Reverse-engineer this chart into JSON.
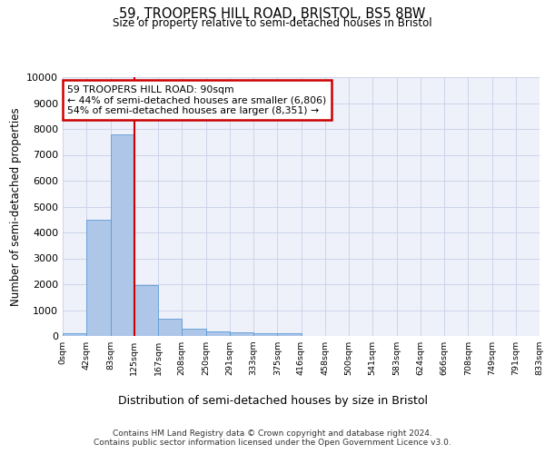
{
  "title": "59, TROOPERS HILL ROAD, BRISTOL, BS5 8BW",
  "subtitle": "Size of property relative to semi-detached houses in Bristol",
  "xlabel": "Distribution of semi-detached houses by size in Bristol",
  "ylabel": "Number of semi-detached properties",
  "bar_values": [
    120,
    4500,
    7800,
    1950,
    650,
    280,
    170,
    150,
    110,
    100,
    0,
    0,
    0,
    0,
    0,
    0,
    0,
    0,
    0,
    0
  ],
  "bar_labels": [
    "0sqm",
    "42sqm",
    "83sqm",
    "125sqm",
    "167sqm",
    "208sqm",
    "250sqm",
    "291sqm",
    "333sqm",
    "375sqm",
    "416sqm",
    "458sqm",
    "500sqm",
    "541sqm",
    "583sqm",
    "624sqm",
    "666sqm",
    "708sqm",
    "749sqm",
    "791sqm",
    "833sqm"
  ],
  "bar_color": "#aec6e8",
  "bar_edge_color": "#5b9bd5",
  "property_line_x": 2.5,
  "annotation_text": "59 TROOPERS HILL ROAD: 90sqm\n← 44% of semi-detached houses are smaller (6,806)\n54% of semi-detached houses are larger (8,351) →",
  "annotation_box_color": "#ffffff",
  "annotation_box_edge": "#cc0000",
  "ylim": [
    0,
    10000
  ],
  "yticks": [
    0,
    1000,
    2000,
    3000,
    4000,
    5000,
    6000,
    7000,
    8000,
    9000,
    10000
  ],
  "footer_line1": "Contains HM Land Registry data © Crown copyright and database right 2024.",
  "footer_line2": "Contains public sector information licensed under the Open Government Licence v3.0.",
  "background_color": "#eef1fa",
  "grid_color": "#c8cfe8"
}
